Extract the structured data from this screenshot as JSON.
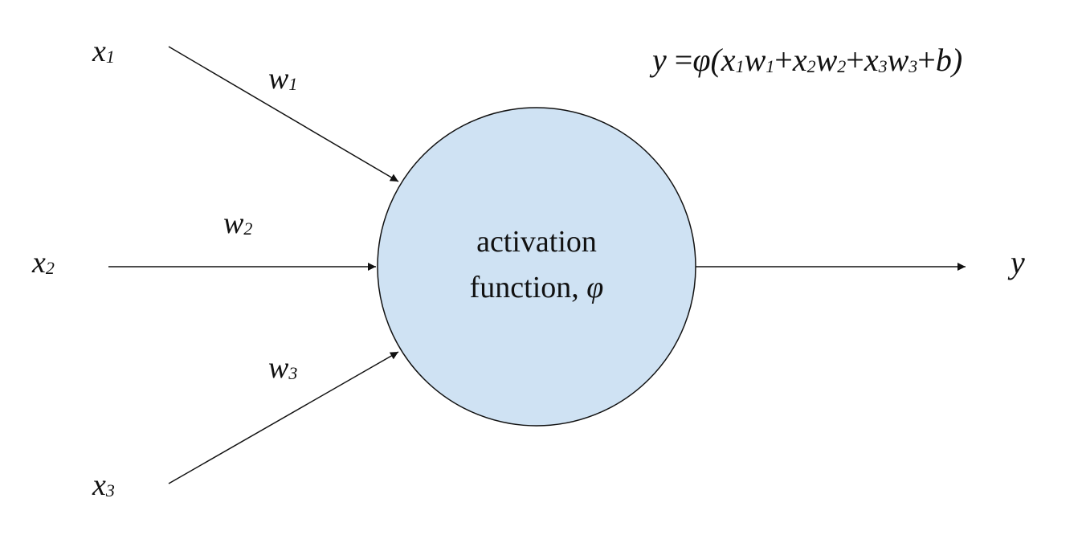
{
  "colors": {
    "neuron_fill": "#cfe2f3",
    "stroke": "#111111",
    "background": "#ffffff"
  },
  "inputs": [
    {
      "var": "x",
      "sub": "1"
    },
    {
      "var": "x",
      "sub": "2"
    },
    {
      "var": "x",
      "sub": "3"
    }
  ],
  "weights": [
    {
      "var": "w",
      "sub": "1"
    },
    {
      "var": "w",
      "sub": "2"
    },
    {
      "var": "w",
      "sub": "3"
    }
  ],
  "neuron": {
    "line1": "activation",
    "line2_text": "function, ",
    "line2_symbol": "φ"
  },
  "output": {
    "label": "y"
  },
  "equation": {
    "lhs": "y",
    "eq": " =",
    "phi": "φ",
    "open": "(",
    "x1": "x",
    "x1_sub": "1",
    "w1": "w",
    "w1_sub": "1",
    "plus1": "+",
    "x2": "x",
    "x2_sub": "2",
    "w2": "w",
    "w2_sub": "2",
    "plus2": "+",
    "x3": "x",
    "x3_sub": "3",
    "w3": "w",
    "w3_sub": "3",
    "plus3": "+",
    "b": "b",
    "close": ")"
  }
}
